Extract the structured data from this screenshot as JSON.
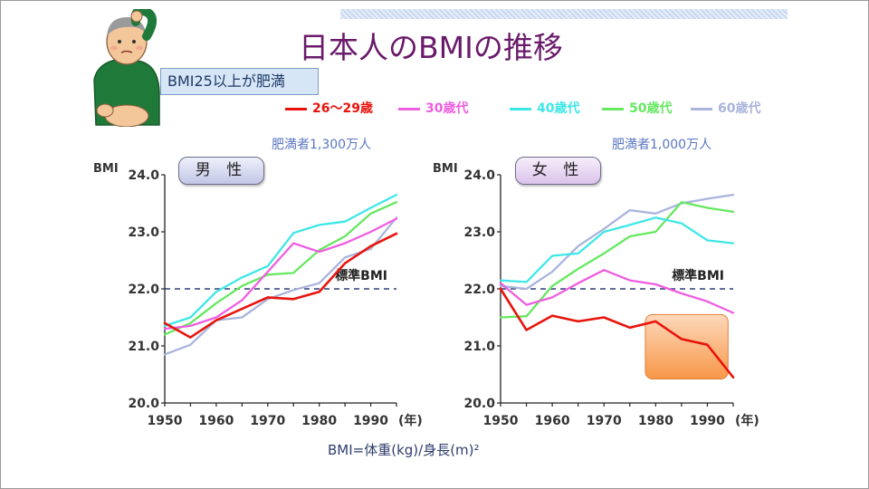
{
  "title": "日本人のBMIの推移",
  "note": "BMI25以上が肥満",
  "footer": "BMI=体重(kg)/身長(m)²",
  "legend": [
    {
      "label": "26～29歳",
      "color": "#e8140c"
    },
    {
      "label": "30歳代",
      "color": "#ee5ee0"
    },
    {
      "label": "40歳代",
      "color": "#3ee7e7"
    },
    {
      "label": "50歳代",
      "color": "#66e860"
    },
    {
      "label": "60歳代",
      "color": "#aab4dc"
    }
  ],
  "icons": {
    "mascot": "man-scratching-head-icon"
  },
  "chart_data": [
    {
      "type": "line",
      "panel_label": "男 性",
      "subtitle": "肥満者1,300万人",
      "ylabel": "BMI",
      "xlabel": "(年)",
      "x": [
        1950,
        1955,
        1960,
        1965,
        1970,
        1975,
        1980,
        1985,
        1990,
        1995
      ],
      "xticks": [
        1950,
        1960,
        1970,
        1980,
        1990
      ],
      "ylim": [
        20.0,
        24.0
      ],
      "yticks": [
        "20.0",
        "21.0",
        "22.0",
        "23.0",
        "24.0"
      ],
      "reference": {
        "value": 22.0,
        "label": "標準BMI"
      },
      "series": [
        {
          "name": "26～29歳",
          "values": [
            21.4,
            21.15,
            21.45,
            21.65,
            21.85,
            21.82,
            21.95,
            22.45,
            22.75,
            22.97
          ]
        },
        {
          "name": "30歳代",
          "values": [
            21.3,
            21.35,
            21.5,
            21.8,
            22.3,
            22.8,
            22.65,
            22.8,
            23.0,
            23.23
          ]
        },
        {
          "name": "40歳代",
          "values": [
            21.35,
            21.5,
            21.95,
            22.2,
            22.4,
            22.98,
            23.12,
            23.18,
            23.42,
            23.65
          ]
        },
        {
          "name": "50歳代",
          "values": [
            21.2,
            21.4,
            21.75,
            22.05,
            22.25,
            22.28,
            22.68,
            22.92,
            23.32,
            23.52
          ]
        },
        {
          "name": "60歳代",
          "values": [
            20.85,
            21.02,
            21.45,
            21.5,
            21.82,
            21.98,
            22.1,
            22.55,
            22.7,
            23.25
          ]
        }
      ]
    },
    {
      "type": "line",
      "panel_label": "女 性",
      "subtitle": "肥満者1,000万人",
      "ylabel": "BMI",
      "xlabel": "(年)",
      "x": [
        1950,
        1955,
        1960,
        1965,
        1970,
        1975,
        1980,
        1985,
        1990,
        1995
      ],
      "xticks": [
        1950,
        1960,
        1970,
        1980,
        1990
      ],
      "ylim": [
        20.0,
        24.0
      ],
      "yticks": [
        "20.0",
        "21.0",
        "22.0",
        "23.0",
        "24.0"
      ],
      "reference": {
        "value": 22.0,
        "label": "標準BMI"
      },
      "highlight": {
        "x": [
          1978,
          1994
        ],
        "y": [
          20.42,
          21.55
        ]
      },
      "series": [
        {
          "name": "26～29歳",
          "values": [
            22.0,
            21.28,
            21.53,
            21.43,
            21.5,
            21.32,
            21.43,
            21.12,
            21.02,
            20.45
          ]
        },
        {
          "name": "30歳代",
          "values": [
            22.1,
            21.72,
            21.85,
            22.1,
            22.33,
            22.15,
            22.08,
            21.92,
            21.78,
            21.58
          ]
        },
        {
          "name": "40歳代",
          "values": [
            22.15,
            22.12,
            22.58,
            22.62,
            23.0,
            23.12,
            23.25,
            23.15,
            22.85,
            22.8
          ]
        },
        {
          "name": "50歳代",
          "values": [
            21.5,
            21.52,
            22.05,
            22.35,
            22.62,
            22.92,
            23.0,
            23.52,
            23.42,
            23.35
          ]
        },
        {
          "name": "60歳代",
          "values": [
            22.05,
            22.0,
            22.3,
            22.75,
            23.05,
            23.38,
            23.32,
            23.5,
            23.58,
            23.65
          ]
        }
      ]
    }
  ]
}
